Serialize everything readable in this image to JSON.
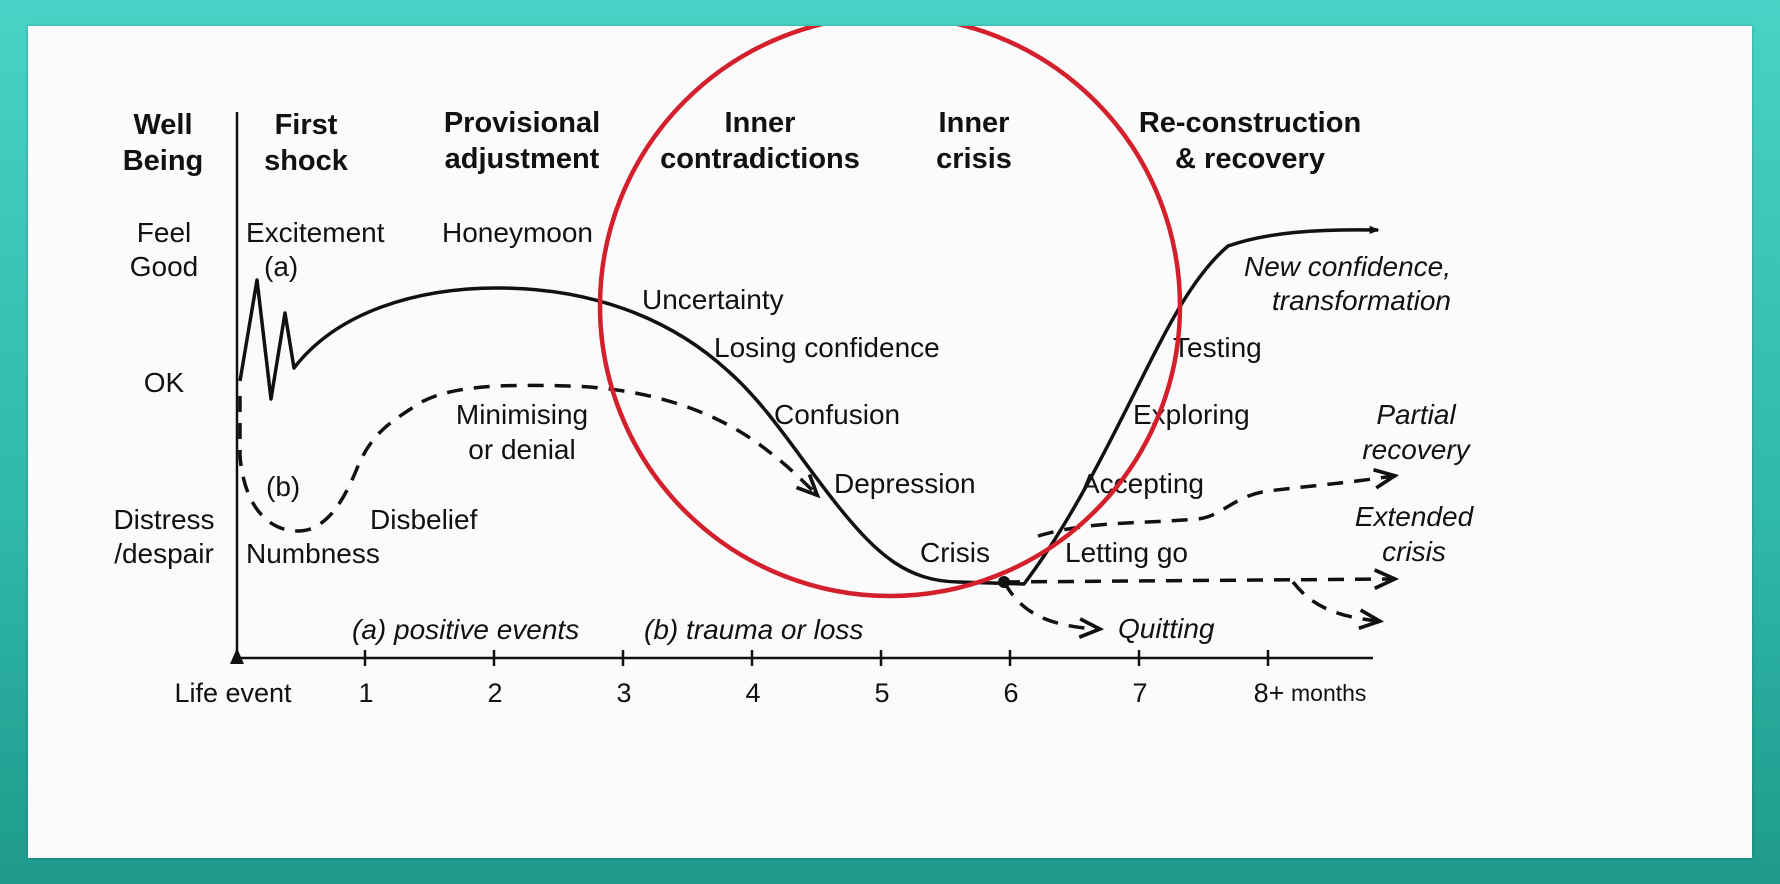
{
  "header": {
    "well_being": [
      "Well",
      "Being"
    ],
    "phases": [
      {
        "lines": [
          "First",
          "shock"
        ]
      },
      {
        "lines": [
          "Provisional",
          "adjustment"
        ]
      },
      {
        "lines": [
          "Inner",
          "contradictions"
        ]
      },
      {
        "lines": [
          "Inner",
          "crisis"
        ]
      },
      {
        "lines": [
          "Re-construction",
          "& recovery"
        ]
      }
    ]
  },
  "levels": {
    "feel_good": [
      "Feel",
      "Good"
    ],
    "ok": "OK",
    "distress": [
      "Distress",
      "/despair"
    ]
  },
  "curve_a_labels": {
    "excitement": "Excitement",
    "a_marker": "(a)",
    "honeymoon": "Honeymoon",
    "uncertainty": "Uncertainty",
    "losing_confidence": "Losing confidence",
    "confusion": "Confusion",
    "depression": "Depression",
    "crisis": "Crisis",
    "letting_go": "Letting go",
    "accepting": "Accepting",
    "exploring": "Exploring",
    "testing": "Testing",
    "new_confidence": [
      "New confidence,",
      "transformation"
    ]
  },
  "curve_b_labels": {
    "b_marker": "(b)",
    "numbness": "Numbness",
    "disbelief": "Disbelief",
    "minimising": [
      "Minimising",
      "or denial"
    ],
    "partial_recovery": [
      "Partial",
      "recovery"
    ],
    "extended_crisis": [
      "Extended",
      "crisis"
    ],
    "quitting": "Quitting"
  },
  "legend": {
    "positive": "(a) positive events",
    "trauma": "(b) trauma or loss"
  },
  "x_axis": {
    "origin": "Life event",
    "ticks": [
      "1",
      "2",
      "3",
      "4",
      "5",
      "6",
      "7",
      "8+"
    ],
    "unit": "months"
  },
  "colors": {
    "highlight_circle": "#d41f2c",
    "ink": "#111111",
    "frame": "#35c1b3"
  }
}
